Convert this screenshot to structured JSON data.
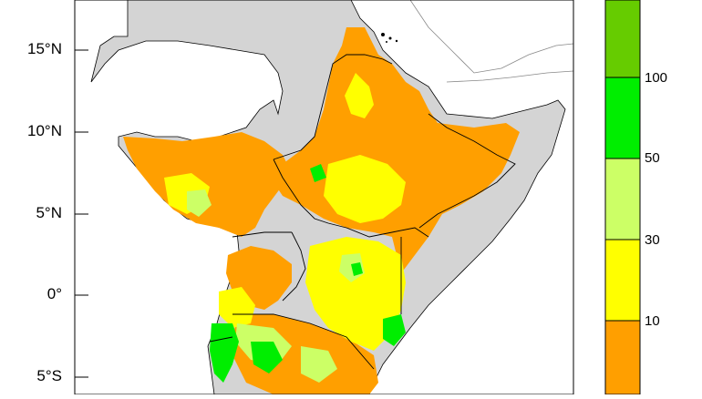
{
  "map": {
    "latitude_labels": [
      "15°N",
      "10°N",
      "5°N",
      "0°",
      "5°S"
    ],
    "colors": {
      "land_no_data": "#d4d4d4",
      "ocean": "#ffffff",
      "borders": "#000000",
      "coastline_outside": "#888888"
    }
  },
  "legend": {
    "bins": [
      {
        "label": "",
        "color": "#ff9f00"
      },
      {
        "label": "10",
        "color": "#ffff00"
      },
      {
        "label": "30",
        "color": "#ccff66"
      },
      {
        "label": "50",
        "color": "#00ee00"
      },
      {
        "label": "100",
        "color": "#66cc00"
      }
    ],
    "tick_labels": [
      "10",
      "30",
      "50",
      "100"
    ]
  }
}
